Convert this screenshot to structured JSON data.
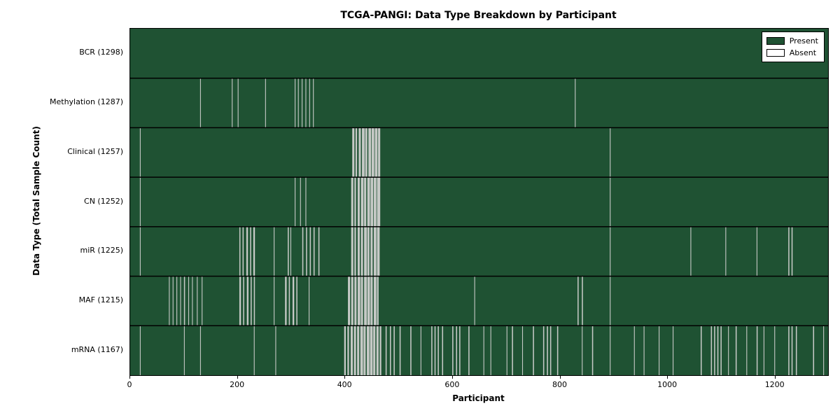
{
  "chart_data": {
    "type": "heatmap",
    "title": "TCGA-PANGI: Data Type Breakdown by Participant",
    "xlabel": "Participant",
    "ylabel": "Data Type (Total Sample Count)",
    "x_range": [
      0,
      1298
    ],
    "x_ticks": [
      0,
      200,
      400,
      600,
      800,
      1000,
      1200
    ],
    "total_participants": 1298,
    "grid": false,
    "legend": {
      "position": "upper right",
      "present_label": "Present",
      "absent_label": "Absent"
    },
    "colors": {
      "present": "#1f5233",
      "absent": "#ffffff",
      "gap_render": "#c6c9c6",
      "frame": "#000000",
      "background": "#ffffff"
    },
    "rows": [
      {
        "name": "BCR",
        "label": "BCR (1298)",
        "count": 1298,
        "absent_runs": []
      },
      {
        "name": "Methylation",
        "label": "Methylation (1287)",
        "count": 1287,
        "absent_runs": [
          [
            130,
            1
          ],
          [
            189,
            1
          ],
          [
            200,
            1
          ],
          [
            251,
            1
          ],
          [
            306,
            1
          ],
          [
            312,
            1
          ],
          [
            319,
            1
          ],
          [
            326,
            1
          ],
          [
            333,
            1
          ],
          [
            340,
            1
          ],
          [
            827,
            1
          ]
        ]
      },
      {
        "name": "Clinical",
        "label": "Clinical (1257)",
        "count": 1257,
        "absent_runs": [
          [
            18,
            1
          ],
          [
            413,
            4
          ],
          [
            419,
            3
          ],
          [
            425,
            4
          ],
          [
            431,
            5
          ],
          [
            437,
            4
          ],
          [
            443,
            5
          ],
          [
            449,
            5
          ],
          [
            455,
            5
          ],
          [
            461,
            4
          ],
          [
            892,
            1
          ]
        ]
      },
      {
        "name": "CN",
        "label": "CN (1252)",
        "count": 1252,
        "absent_runs": [
          [
            18,
            1
          ],
          [
            306,
            1
          ],
          [
            316,
            1
          ],
          [
            326,
            1
          ],
          [
            411,
            4
          ],
          [
            417,
            3
          ],
          [
            423,
            4
          ],
          [
            429,
            5
          ],
          [
            435,
            4
          ],
          [
            441,
            5
          ],
          [
            447,
            5
          ],
          [
            453,
            5
          ],
          [
            459,
            6
          ],
          [
            892,
            1
          ]
        ]
      },
      {
        "name": "miR",
        "label": "miR (1225)",
        "count": 1225,
        "absent_runs": [
          [
            18,
            1
          ],
          [
            203,
            2
          ],
          [
            209,
            2
          ],
          [
            216,
            3
          ],
          [
            223,
            2
          ],
          [
            229,
            3
          ],
          [
            267,
            1
          ],
          [
            293,
            2
          ],
          [
            298,
            1
          ],
          [
            320,
            2
          ],
          [
            327,
            2
          ],
          [
            334,
            2
          ],
          [
            341,
            2
          ],
          [
            350,
            2
          ],
          [
            411,
            4
          ],
          [
            417,
            3
          ],
          [
            423,
            4
          ],
          [
            429,
            4
          ],
          [
            435,
            5
          ],
          [
            441,
            4
          ],
          [
            447,
            4
          ],
          [
            453,
            5
          ],
          [
            459,
            5
          ],
          [
            892,
            1
          ],
          [
            1042,
            1
          ],
          [
            1107,
            1
          ],
          [
            1165,
            1
          ],
          [
            1224,
            2
          ],
          [
            1230,
            2
          ]
        ]
      },
      {
        "name": "MAF",
        "label": "MAF (1215)",
        "count": 1215,
        "absent_runs": [
          [
            72,
            1
          ],
          [
            79,
            1
          ],
          [
            86,
            1
          ],
          [
            93,
            1
          ],
          [
            100,
            2
          ],
          [
            108,
            1
          ],
          [
            115,
            1
          ],
          [
            124,
            1
          ],
          [
            133,
            1
          ],
          [
            203,
            3
          ],
          [
            210,
            2
          ],
          [
            217,
            3
          ],
          [
            224,
            2
          ],
          [
            230,
            2
          ],
          [
            267,
            1
          ],
          [
            288,
            3
          ],
          [
            295,
            2
          ],
          [
            302,
            3
          ],
          [
            309,
            2
          ],
          [
            332,
            1
          ],
          [
            405,
            4
          ],
          [
            411,
            4
          ],
          [
            417,
            4
          ],
          [
            423,
            5
          ],
          [
            429,
            4
          ],
          [
            435,
            5
          ],
          [
            441,
            5
          ],
          [
            447,
            4
          ],
          [
            453,
            5
          ],
          [
            459,
            3
          ],
          [
            640,
            1
          ],
          [
            832,
            2
          ],
          [
            840,
            2
          ],
          [
            892,
            1
          ]
        ]
      },
      {
        "name": "mRNA",
        "label": "mRNA (1167)",
        "count": 1167,
        "absent_runs": [
          [
            18,
            1
          ],
          [
            100,
            1
          ],
          [
            130,
            1
          ],
          [
            230,
            1
          ],
          [
            270,
            1
          ],
          [
            398,
            3
          ],
          [
            404,
            3
          ],
          [
            410,
            4
          ],
          [
            416,
            4
          ],
          [
            422,
            4
          ],
          [
            428,
            5
          ],
          [
            434,
            4
          ],
          [
            440,
            5
          ],
          [
            446,
            5
          ],
          [
            452,
            4
          ],
          [
            458,
            4
          ],
          [
            464,
            3
          ],
          [
            475,
            2
          ],
          [
            483,
            2
          ],
          [
            490,
            2
          ],
          [
            501,
            2
          ],
          [
            521,
            2
          ],
          [
            540,
            1
          ],
          [
            560,
            2
          ],
          [
            566,
            2
          ],
          [
            572,
            2
          ],
          [
            580,
            2
          ],
          [
            599,
            2
          ],
          [
            606,
            2
          ],
          [
            612,
            2
          ],
          [
            629,
            2
          ],
          [
            657,
            1
          ],
          [
            670,
            1
          ],
          [
            700,
            1
          ],
          [
            710,
            2
          ],
          [
            729,
            1
          ],
          [
            749,
            2
          ],
          [
            768,
            2
          ],
          [
            775,
            2
          ],
          [
            781,
            2
          ],
          [
            794,
            2
          ],
          [
            840,
            1
          ],
          [
            859,
            2
          ],
          [
            892,
            1
          ],
          [
            937,
            1
          ],
          [
            955,
            1
          ],
          [
            983,
            1
          ],
          [
            1009,
            1
          ],
          [
            1061,
            2
          ],
          [
            1080,
            2
          ],
          [
            1086,
            2
          ],
          [
            1092,
            2
          ],
          [
            1098,
            2
          ],
          [
            1112,
            1
          ],
          [
            1126,
            2
          ],
          [
            1146,
            1
          ],
          [
            1165,
            2
          ],
          [
            1178,
            1
          ],
          [
            1198,
            1
          ],
          [
            1224,
            2
          ],
          [
            1230,
            2
          ],
          [
            1238,
            2
          ],
          [
            1270,
            2
          ],
          [
            1289,
            1
          ]
        ]
      }
    ]
  }
}
